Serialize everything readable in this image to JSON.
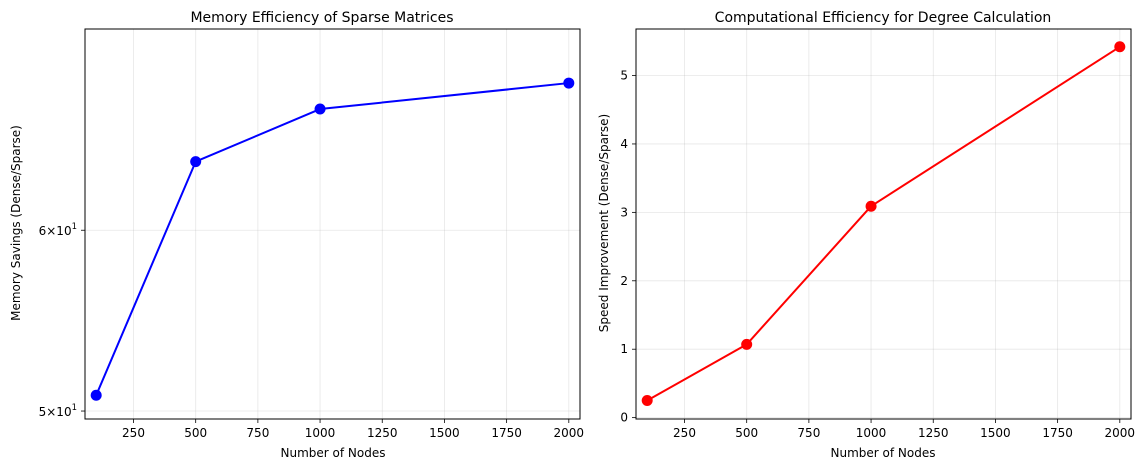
{
  "chart_data": [
    {
      "type": "line",
      "title": "Memory Efficiency of Sparse Matrices",
      "xlabel": "Number of Nodes",
      "ylabel": "Memory Savings (Dense/Sparse)",
      "yscale": "log",
      "xlim": [
        55,
        2045
      ],
      "ylim": [
        49.6,
        73.5
      ],
      "xticks": [
        250,
        500,
        750,
        1000,
        1250,
        1500,
        1750,
        2000
      ],
      "yticks": [
        {
          "value": 50,
          "base": "5",
          "mant": "1"
        },
        {
          "value": 60,
          "base": "6",
          "mant": "1"
        }
      ],
      "tick_prefix": "×10",
      "grid": true,
      "color": "#0000ff",
      "series": [
        {
          "x": [
            100,
            500,
            1000,
            2000
          ],
          "y": [
            50.8,
            64.3,
            67.8,
            69.6
          ]
        }
      ]
    },
    {
      "type": "line",
      "title": "Computational Efficiency for Degree Calculation",
      "xlabel": "Number of Nodes",
      "ylabel": "Speed Improvement (Dense/Sparse)",
      "yscale": "linear",
      "xlim": [
        55,
        2045
      ],
      "ylim": [
        -0.02,
        5.68
      ],
      "xticks": [
        250,
        500,
        750,
        1000,
        1250,
        1500,
        1750,
        2000
      ],
      "yticks": [
        0,
        1,
        2,
        3,
        4,
        5
      ],
      "grid": true,
      "color": "#ff0000",
      "series": [
        {
          "x": [
            100,
            500,
            1000,
            2000
          ],
          "y": [
            0.25,
            1.07,
            3.09,
            5.42
          ]
        }
      ]
    }
  ]
}
